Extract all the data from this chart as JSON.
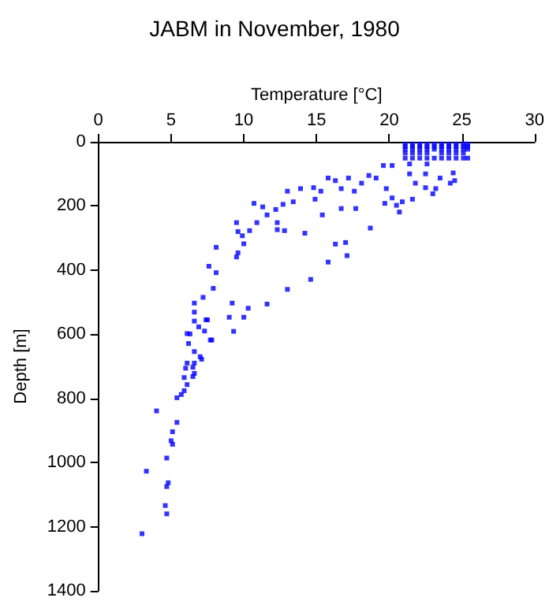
{
  "chart_data": {
    "type": "scatter",
    "title": "JABM in November, 1980",
    "xlabel": "Temperature [°C]",
    "ylabel": "Depth [m]",
    "xlim": [
      0,
      30
    ],
    "xticks": [
      0,
      5,
      10,
      15,
      20,
      25,
      30
    ],
    "ylim": [
      1400,
      0
    ],
    "yticks": [
      0,
      200,
      400,
      600,
      800,
      1000,
      1200,
      1400
    ],
    "grid": false,
    "marker": "square",
    "series": [
      {
        "color": "#0000ff",
        "x": [
          21.1,
          21.6,
          22.1,
          22.6,
          23.1,
          23.6,
          24.1,
          24.6,
          25.1,
          25.4,
          21.1,
          21.6,
          22.1,
          22.6,
          23.1,
          23.6,
          24.1,
          24.6,
          25.1,
          25.4,
          21.1,
          21.6,
          22.1,
          22.6,
          23.1,
          23.6,
          24.1,
          24.6,
          25.1,
          25.4,
          21.1,
          21.6,
          22.1,
          22.6,
          23.6,
          24.1,
          24.6,
          25.1,
          21.1,
          21.6,
          22.1,
          22.6,
          23.1,
          23.6,
          24.1,
          24.6,
          25.1,
          25.4,
          19.6,
          20.2,
          21.4,
          22.6,
          24.4,
          24.5,
          24.2,
          23.2,
          22.5,
          21.8,
          21.4,
          22.5,
          23.5,
          23.0,
          21.6,
          20.9,
          20.5,
          20.7,
          20.2,
          19.7,
          19.8,
          19.1,
          18.6,
          18.1,
          17.6,
          17.2,
          16.7,
          16.3,
          15.8,
          15.3,
          14.9,
          14.8,
          13.9,
          13.0,
          13.4,
          12.7,
          12.2,
          11.6,
          11.3,
          10.7,
          10.9,
          10.4,
          9.6,
          9.5,
          9.9,
          10.0,
          9.5,
          9.6,
          8.1,
          7.6,
          8.1,
          7.9,
          7.2,
          6.6,
          6.6,
          6.6,
          6.1,
          7.4,
          7.7,
          9.2,
          9.0,
          9.3,
          10.0,
          10.3,
          11.6,
          13.0,
          14.6,
          15.8,
          16.3,
          17.0,
          17.1,
          18.7,
          17.7,
          16.7,
          15.4,
          14.2,
          12.8,
          12.3,
          12.3,
          7.5,
          6.9,
          6.3,
          7.3,
          7.8,
          6.2,
          6.6,
          7.0,
          7.1,
          6.1,
          6.6,
          6.5,
          6.0,
          6.6,
          6.5,
          5.9,
          6.1,
          5.9,
          5.7,
          5.4,
          4.0,
          5.4,
          5.1,
          5.0,
          5.1,
          4.7,
          3.3,
          4.8,
          4.7,
          4.6,
          4.7,
          3.0
        ],
        "values": [
          7,
          7,
          7,
          7,
          7,
          7,
          7,
          7,
          7,
          7,
          15,
          15,
          15,
          15,
          15,
          15,
          15,
          15,
          15,
          15,
          23,
          23,
          23,
          23,
          23,
          23,
          23,
          23,
          23,
          23,
          35,
          35,
          35,
          35,
          35,
          35,
          35,
          35,
          51,
          51,
          51,
          51,
          51,
          51,
          51,
          51,
          51,
          51,
          74,
          74,
          69,
          69,
          97,
          121,
          129,
          146,
          143,
          129,
          100,
          100,
          113,
          162,
          179,
          187,
          198,
          219,
          175,
          192,
          146,
          113,
          105,
          129,
          154,
          113,
          146,
          121,
          113,
          154,
          179,
          143,
          146,
          154,
          187,
          195,
          211,
          228,
          203,
          192,
          252,
          277,
          280,
          252,
          293,
          318,
          359,
          346,
          329,
          388,
          408,
          457,
          485,
          503,
          531,
          559,
          598,
          555,
          618,
          503,
          547,
          591,
          547,
          519,
          506,
          460,
          429,
          375,
          319,
          314,
          355,
          269,
          208,
          208,
          228,
          285,
          277,
          252,
          274,
          555,
          577,
          599,
          590,
          618,
          629,
          654,
          670,
          678,
          690,
          690,
          703,
          706,
          722,
          732,
          735,
          757,
          776,
          788,
          798,
          839,
          875,
          904,
          932,
          943,
          986,
          1027,
          1063,
          1075,
          1134,
          1160,
          1222
        ]
      }
    ]
  }
}
